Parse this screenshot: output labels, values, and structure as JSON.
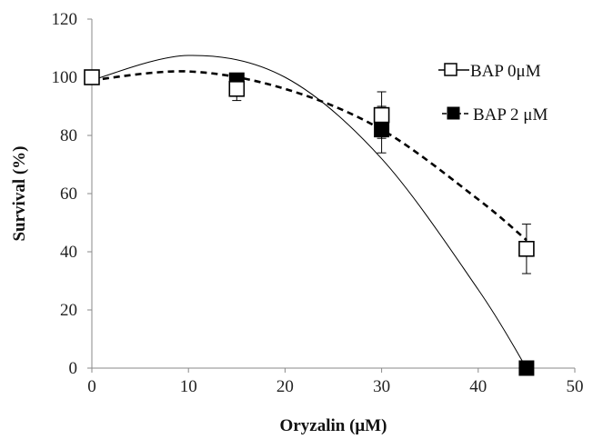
{
  "chart_data": {
    "type": "scatter",
    "title": "",
    "xlabel": "Oryzalin  (μM)",
    "ylabel": "Survival (%)",
    "xlim": [
      0,
      50
    ],
    "ylim": [
      0,
      120
    ],
    "x_ticks": [
      0,
      10,
      20,
      30,
      40,
      50
    ],
    "y_ticks": [
      0,
      20,
      40,
      60,
      80,
      100,
      120
    ],
    "grid": false,
    "legend_position": "top-right",
    "series": [
      {
        "name": "BAP 0μM",
        "marker": "open-square",
        "x": [
          0,
          15,
          30,
          45
        ],
        "y": [
          100,
          96,
          87,
          41
        ],
        "error": [
          0,
          4,
          8,
          8.5
        ],
        "trendline": {
          "type": "polynomial",
          "style": "solid",
          "points": [
            [
              0,
              99
            ],
            [
              10,
              107.5
            ],
            [
              20,
              100
            ],
            [
              30,
              72
            ],
            [
              40,
              27
            ],
            [
              45,
              0
            ]
          ]
        },
        "color": "#000000"
      },
      {
        "name": "BAP 2 μM",
        "marker": "filled-square",
        "x": [
          0,
          15,
          30,
          45
        ],
        "y": [
          100,
          99,
          82,
          0
        ],
        "error": [
          0,
          2,
          8,
          0
        ],
        "trendline": {
          "type": "polynomial",
          "style": "dashed",
          "points": [
            [
              0,
              99
            ],
            [
              10,
              102
            ],
            [
              20,
              96
            ],
            [
              30,
              82
            ],
            [
              40,
              58
            ],
            [
              45,
              44
            ]
          ]
        },
        "color": "#000000"
      }
    ]
  }
}
